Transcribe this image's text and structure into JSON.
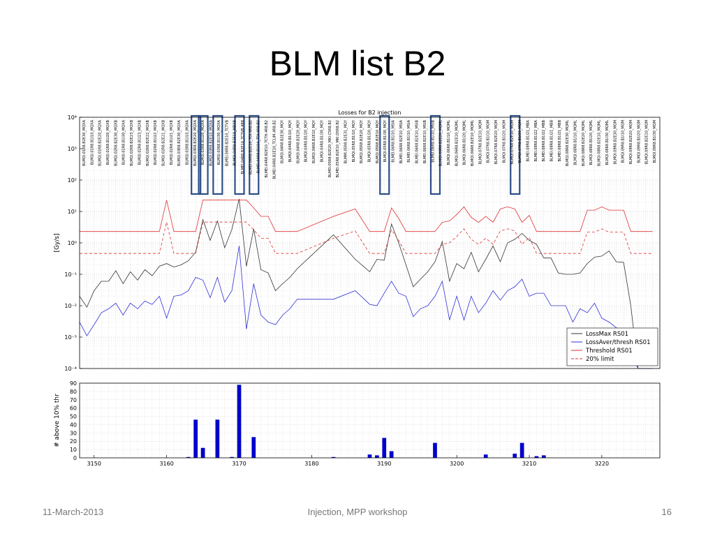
{
  "slide": {
    "title": "BLM list B2",
    "footer_date": "11-March-2013",
    "footer_center": "Injection, MPP workshop",
    "page_number": "16"
  },
  "colors": {
    "loss_max": "#333333",
    "loss_aver": "#3030d8",
    "threshold": "#e03030",
    "limit20": "#e03030",
    "bars": "#0000cc",
    "highlight_box": "#2c4e86"
  },
  "chart_data": [
    {
      "type": "line",
      "title": "Losses for B2 injection",
      "xlabel": "",
      "ylabel": "[Gy/s]",
      "yscale": "log",
      "ylim": [
        0.0001,
        10000
      ],
      "xlim": [
        3148,
        3228
      ],
      "y_tick_labels": [
        "10⁻⁴",
        "10⁻³",
        "10⁻²",
        "10⁻¹",
        "10⁰",
        "10¹",
        "10²",
        "10³",
        "10⁴"
      ],
      "grid": true,
      "legend_position": "bottom-right",
      "x": [
        3148,
        3149,
        3150,
        3151,
        3152,
        3153,
        3154,
        3155,
        3156,
        3157,
        3158,
        3159,
        3160,
        3161,
        3162,
        3163,
        3164,
        3165,
        3166,
        3167,
        3168,
        3169,
        3170,
        3171,
        3172,
        3173,
        3174,
        3175,
        3176,
        3177,
        3178,
        3183,
        3186,
        3188,
        3189,
        3190,
        3191,
        3192,
        3193,
        3194,
        3195,
        3196,
        3197,
        3198,
        3199,
        3200,
        3201,
        3202,
        3203,
        3204,
        3205,
        3206,
        3207,
        3208,
        3209,
        3210,
        3211,
        3212,
        3213,
        3214,
        3215,
        3216,
        3217,
        3218,
        3219,
        3220,
        3221,
        3222,
        3223,
        3224,
        3225,
        3226,
        3227
      ],
      "series": [
        {
          "name": "LossMax RS01",
          "style": "solid",
          "values": [
            0.02,
            0.009,
            0.03,
            0.06,
            0.06,
            0.13,
            0.05,
            0.12,
            0.065,
            0.14,
            0.09,
            0.18,
            0.22,
            0.17,
            0.2,
            0.27,
            0.5,
            5.5,
            1.2,
            5.0,
            0.7,
            2.7,
            25,
            0.18,
            2.8,
            0.14,
            0.11,
            0.03,
            0.05,
            0.08,
            0.15,
            1.8,
            0.3,
            0.12,
            0.3,
            0.28,
            4.0,
            1.0,
            0.2,
            0.04,
            0.07,
            0.12,
            0.25,
            1.1,
            0.06,
            0.22,
            0.15,
            0.5,
            0.12,
            0.3,
            0.8,
            0.25,
            1.0,
            1.3,
            2.0,
            1.2,
            0.9,
            0.33,
            0.33,
            0.11,
            0.1,
            0.1,
            0.11,
            0.22,
            0.35,
            0.38,
            0.55,
            0.25,
            0.24,
            0.01,
            0.0001,
            0.0001,
            0.0001
          ]
        },
        {
          "name": "LossAver/thresh RS01",
          "style": "solid",
          "values": [
            0.003,
            0.0011,
            0.0025,
            0.006,
            0.008,
            0.012,
            0.005,
            0.012,
            0.008,
            0.014,
            0.011,
            0.02,
            0.004,
            0.02,
            0.022,
            0.03,
            0.08,
            0.065,
            0.018,
            0.08,
            0.013,
            0.03,
            0.8,
            0.0018,
            0.05,
            0.005,
            0.003,
            0.0025,
            0.005,
            0.008,
            0.016,
            0.016,
            0.03,
            0.011,
            0.01,
            0.025,
            0.06,
            0.025,
            0.02,
            0.0045,
            0.008,
            0.01,
            0.02,
            0.06,
            0.0035,
            0.02,
            0.0035,
            0.02,
            0.006,
            0.012,
            0.03,
            0.015,
            0.03,
            0.04,
            0.07,
            0.02,
            0.025,
            0.025,
            0.01,
            0.01,
            0.01,
            0.003,
            0.008,
            0.006,
            0.012,
            0.004,
            0.003,
            0.002,
            0.001,
            0.0003,
            0.0001,
            0.0001,
            0.0001
          ]
        },
        {
          "name": "Threshold RS01",
          "style": "solid",
          "values": [
            2.3,
            2.3,
            2.3,
            2.3,
            2.3,
            2.3,
            2.3,
            2.3,
            2.3,
            2.3,
            2.3,
            2.3,
            23,
            2.3,
            2.3,
            2.3,
            2.3,
            23,
            23,
            23,
            23,
            23,
            23,
            23,
            13,
            7,
            7,
            2.3,
            2.3,
            2.3,
            2.3,
            7,
            12,
            2.3,
            2.3,
            2.3,
            13,
            6,
            2.3,
            2.3,
            2.3,
            2.3,
            2.3,
            4.5,
            5,
            8,
            14,
            6.5,
            4.5,
            7,
            4.5,
            12,
            14,
            12,
            4.5,
            7.5,
            2.3,
            2.3,
            2.3,
            2.3,
            2.3,
            2.3,
            2.3,
            11,
            11,
            14,
            11,
            11,
            11,
            2.3,
            2.3,
            2.3,
            2.3
          ]
        },
        {
          "name": "20% limit",
          "style": "dashed",
          "values": [
            0.46,
            0.46,
            0.46,
            0.46,
            0.46,
            0.46,
            0.46,
            0.46,
            0.46,
            0.46,
            0.46,
            0.46,
            4.6,
            0.46,
            0.46,
            0.46,
            0.46,
            4.6,
            4.6,
            4.6,
            4.6,
            4.6,
            4.6,
            4.6,
            2.6,
            1.4,
            1.4,
            0.46,
            0.46,
            0.46,
            0.46,
            1.4,
            2.4,
            0.46,
            0.46,
            0.46,
            2.6,
            1.2,
            0.46,
            0.46,
            0.46,
            0.46,
            0.46,
            0.9,
            1.0,
            1.6,
            2.8,
            1.3,
            0.9,
            1.4,
            0.9,
            2.4,
            2.8,
            2.4,
            0.9,
            1.5,
            0.46,
            0.46,
            0.46,
            0.46,
            0.46,
            0.46,
            0.46,
            2.2,
            2.2,
            2.8,
            2.2,
            2.2,
            2.2,
            0.46,
            0.46,
            0.46,
            0.46
          ]
        }
      ],
      "monitor_labels": [
        "BLMQI.01R8.B2E30_MQXA",
        "BLMQI.01R8.B1I10_MQXA",
        "BLMQI.01R8.B2E20_MQXA",
        "BLMQI.01R8.B1I20_MQXB",
        "BLMQI.02R8.B2E30_MQXB",
        "BLMQI.01R8.B1I30_MQXA",
        "BLMQI.02R8.B2E23_MQXB",
        "BLMQI.02R8.B1I23_MQXB",
        "BLMQI.02R8.B2E22_MQXB",
        "BLMQI.02R8.B1I22_MQXB",
        "BLMQI.02R8.B2E21_MQXB",
        "BLMQI.02R8.B1I21_MQXB",
        "BLMQI.03R8.B2E30_MQXA",
        "BLMQI.03R8.B1I10_MQXA",
        "BLMQI.03R8.B2E20_MQXA",
        "BLMQI.03R8.B1I20_MQXA",
        "BLMQI.03R8.B2E10_MQXA",
        "BLMQI.03R8.B1I30_MQXA",
        "BLMEI.04R8.B2E10_TCTVB",
        "BLMQI.04R8.B2E10_MBXB",
        "BLMEI.04R8.B2E10_TCTVB.4R8",
        "BLMEI.04R8.B2E10_TDI.4R8.B2",
        "BLMEI.04R8.B1I10_TDI.4R8.B2",
        "BLMEI.04R8.B2E10_TCTH.4R8.B2",
        "BLMEI.04R8.B2E10_TCLIM.4R8.B2",
        "BLMQI.04R8.B2E30_MQY",
        "BLMQI.04R8.B1I10_MQY",
        "BLMQI.04R8.B2E20_MQY",
        "BLMQI.04R8.B1I20_MQY",
        "BLMQI.04R8.B2E10_MQY",
        "BLMQI.04R8.B1I30_MQY",
        "BLMEI.05R8.B2E20_MKI.C5R8.B2",
        "BLMEI.05R8.B2E10_MKI.D5R8.B2",
        "BLMMI.05R8.B2E31_MQY",
        "BLMQI.05R8.B1I10_MQY",
        "BLMQI.05R8.B2E20_MQY",
        "BLMQI.05R8.B1I20_MQY",
        "BLMQI.05R8.B2E10_MQY",
        "BLMQI.05R8.B1I30_MQY",
        "BLMEI.06R8.B1I10_MSIA",
        "BLMEI.06R8.B2E10_MSIA",
        "BLMEI.06R8.B1I10_MSIA",
        "BLMEI.06R8.B2E10_MSIB",
        "BLMEI.06R8.B2E10_MSIB",
        "BLMEI.06R8.B1I10_MSIB",
        "BLMQI.06R8.B2E20_MQML",
        "BLMQI.06R8.B1I10_MQML",
        "BLMQI.06R8.B2E10_MQML",
        "BLMQI.06R8.B1I20_MQML",
        "BLMQI.06R8.B2E10_MQML",
        "BLMQI.07R8.B2E10_MQM",
        "BLMQI.07R8.B1I10_MQM",
        "BLMQI.07R8.B2E20_MQM",
        "BLMQI.07R8.B1I20_MQM",
        "BLMQI.07R8.B2E10_MQM",
        "BLMQI.07R8.B1I30_MQM",
        "BLMEI.08R8.B1I21_MBA",
        "BLMEI.08R8.B1I22_MBA",
        "BLMEI.08R8.B1I22_MBB",
        "BLMEI.08R8.B1I21_MBB",
        "BLMEI.08R8.B1I21_MBB",
        "BLMQI.08R8.B2E30_MQML",
        "BLMQI.08R8.B1I10_MQML",
        "BLMQI.08R8.B2E20_MQML",
        "BLMQI.08R8.B1I20_MQML",
        "BLMQI.08R8.B2E10_MQML",
        "BLMQI.08R8.B1I30_MQML",
        "BLMQI.09R8.B2E30_MQM",
        "BLMQI.09R8.B1I10_MQM",
        "BLMQI.09R8.B2E20_MQM",
        "BLMQI.09R8.B1I20_MQM",
        "BLMQI.09R8.B2E10_MQM",
        "BLMQI.09R8.B1I30_MQM"
      ],
      "highlighted_monitors": [
        3164,
        3165,
        3167,
        3170,
        3172,
        3190,
        3197,
        3208
      ]
    },
    {
      "type": "bar",
      "title": "",
      "xlabel": "",
      "ylabel": "# above 10% thr",
      "ylim": [
        0,
        90
      ],
      "xlim": [
        3148,
        3228
      ],
      "y_ticks": [
        0,
        10,
        20,
        30,
        40,
        50,
        60,
        70,
        80,
        90
      ],
      "x_ticks": [
        3150,
        3160,
        3170,
        3180,
        3190,
        3200,
        3210,
        3220
      ],
      "grid": true,
      "x": [
        3163,
        3164,
        3165,
        3167,
        3169,
        3170,
        3172,
        3183,
        3188,
        3189,
        3190,
        3191,
        3197,
        3204,
        3208,
        3209,
        3211,
        3212
      ],
      "values": [
        1,
        46,
        12,
        46,
        1,
        88,
        25,
        1,
        4,
        3,
        24,
        8,
        18,
        4,
        5,
        18,
        2,
        3
      ]
    }
  ]
}
